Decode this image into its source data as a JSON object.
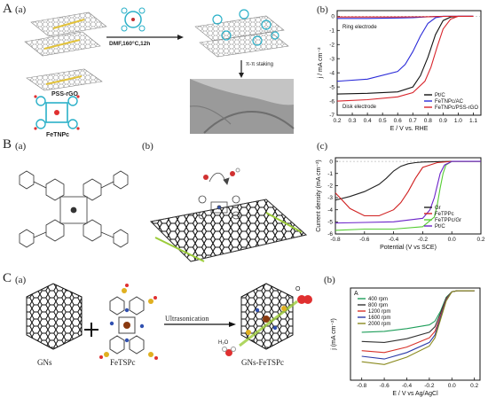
{
  "figure": {
    "panel_A": {
      "label": "A",
      "sub_a": "(a)",
      "sub_b": "(b)",
      "reaction_conditions": "DMF,160°C,12h",
      "stacking_label": "π-π staking",
      "material_1": "PSS-rGO",
      "material_2": "FeTNPc"
    },
    "panel_B": {
      "label": "B",
      "sub_a": "(a)",
      "sub_b": "(b)",
      "sub_c": "(c)"
    },
    "panel_C": {
      "label": "C",
      "sub_a": "(a)",
      "sub_b": "(b)",
      "reagent_1": "GNs",
      "reagent_2": "FeTSPc",
      "process": "Ultrasonication",
      "product": "GNs-FeTSPc",
      "o2": "O",
      "h2o": "H₂O"
    }
  },
  "chart_data": [
    {
      "id": "A-b",
      "type": "line",
      "xlabel": "E / V vs. RHE",
      "ylabel": "j / mA cm⁻²",
      "xlim": [
        0.2,
        1.15
      ],
      "ylim": [
        -7,
        0.4
      ],
      "xticks": [
        "0.2",
        "0.3",
        "0.4",
        "0.5",
        "0.6",
        "0.7",
        "0.8",
        "0.9",
        "1.0",
        "1.1"
      ],
      "yticks": [
        "0",
        "-1",
        "-2",
        "-3",
        "-4",
        "-5",
        "-6",
        "-7"
      ],
      "annotations": [
        "Ring electrode",
        "Disk electrode"
      ],
      "legend_position": "bottom-right",
      "colors": {
        "Pt/C": "#111111",
        "FeTNPc/AC": "#2a2ad8",
        "FeTNPc/PSS-rGO": "#d8232a"
      },
      "series": [
        {
          "name": "Pt/C",
          "x": [
            0.2,
            0.4,
            0.6,
            0.7,
            0.75,
            0.8,
            0.85,
            0.9,
            0.95,
            1.0,
            1.1
          ],
          "y": [
            -5.5,
            -5.45,
            -5.35,
            -5.0,
            -4.2,
            -2.9,
            -1.3,
            -0.3,
            -0.05,
            0,
            0
          ]
        },
        {
          "name": "FeTNPc/AC",
          "x": [
            0.2,
            0.4,
            0.6,
            0.65,
            0.7,
            0.75,
            0.8,
            0.85,
            0.9,
            1.0,
            1.1
          ],
          "y": [
            -4.6,
            -4.45,
            -3.9,
            -3.4,
            -2.5,
            -1.4,
            -0.5,
            -0.1,
            0,
            0,
            0
          ]
        },
        {
          "name": "FeTNPc/PSS-rGO",
          "x": [
            0.2,
            0.4,
            0.6,
            0.7,
            0.78,
            0.82,
            0.86,
            0.9,
            0.95,
            1.0,
            1.1
          ],
          "y": [
            -6.0,
            -5.9,
            -5.7,
            -5.4,
            -4.6,
            -3.6,
            -2.2,
            -0.9,
            -0.2,
            0,
            0
          ]
        },
        {
          "name": "FeTNPc/AC ring",
          "x": [
            0.2,
            0.4,
            0.6,
            0.7,
            0.75,
            0.8,
            0.85,
            0.9,
            1.1
          ],
          "y": [
            -0.15,
            -0.15,
            -0.12,
            -0.1,
            -0.07,
            -0.04,
            -0.02,
            0,
            0
          ]
        },
        {
          "name": "FeTNPc/PSS-rGO ring",
          "x": [
            0.2,
            0.4,
            0.6,
            0.75,
            0.8,
            0.85,
            0.9,
            1.1
          ],
          "y": [
            -0.05,
            -0.05,
            -0.05,
            -0.04,
            -0.03,
            -0.02,
            -0.01,
            0
          ]
        }
      ]
    },
    {
      "id": "B-c",
      "type": "line",
      "xlabel": "Potential (V vs SCE)",
      "ylabel": "Current density (mA cm⁻²)",
      "xlim": [
        -0.8,
        0.2
      ],
      "ylim": [
        -6,
        0.3
      ],
      "xticks": [
        "-0.8",
        "-0.6",
        "-0.4",
        "-0.2",
        "0.0",
        "0.2"
      ],
      "yticks": [
        "0",
        "-1",
        "-2",
        "-3",
        "-4",
        "-5",
        "-6"
      ],
      "legend_position": "bottom-right",
      "colors": {
        "Gr": "#222222",
        "FeTPPc": "#d02020",
        "FeTPPc/Gr": "#55cc33",
        "Pt/C": "#6a22c8"
      },
      "series": [
        {
          "name": "Gr",
          "x": [
            -0.8,
            -0.7,
            -0.6,
            -0.5,
            -0.45,
            -0.4,
            -0.35,
            -0.3,
            -0.25,
            -0.2,
            0,
            0.2
          ],
          "y": [
            -3.2,
            -2.9,
            -2.5,
            -1.9,
            -1.4,
            -0.8,
            -0.4,
            -0.2,
            -0.1,
            -0.05,
            0,
            0
          ]
        },
        {
          "name": "FeTPPc",
          "x": [
            -0.8,
            -0.7,
            -0.6,
            -0.5,
            -0.4,
            -0.35,
            -0.3,
            -0.25,
            -0.2,
            -0.1,
            0,
            0.2
          ],
          "y": [
            -2.6,
            -3.9,
            -4.5,
            -4.5,
            -4.0,
            -3.4,
            -2.5,
            -1.4,
            -0.5,
            -0.1,
            0,
            0
          ]
        },
        {
          "name": "FeTPPc/Gr",
          "x": [
            -0.8,
            -0.6,
            -0.4,
            -0.2,
            -0.12,
            -0.1,
            -0.08,
            -0.06,
            -0.04,
            0,
            0.2
          ],
          "y": [
            -5.7,
            -5.6,
            -5.6,
            -5.4,
            -4.6,
            -3.6,
            -2.2,
            -1.0,
            -0.3,
            0,
            0
          ]
        },
        {
          "name": "Pt/C",
          "x": [
            -0.8,
            -0.6,
            -0.4,
            -0.2,
            -0.15,
            -0.12,
            -0.1,
            -0.08,
            -0.05,
            0,
            0.2
          ],
          "y": [
            -5.1,
            -5.05,
            -5.0,
            -4.7,
            -4.0,
            -3.0,
            -2.0,
            -1.0,
            -0.3,
            0,
            0
          ]
        }
      ]
    },
    {
      "id": "C-b",
      "type": "line",
      "panel_tag": "A",
      "xlabel": "E / V vs Ag/AgCl",
      "ylabel": "j (mA cm⁻²)",
      "xlim": [
        -0.9,
        0.25
      ],
      "ylim": [
        0,
        1
      ],
      "xticks": [
        "-0.8",
        "-0.6",
        "-0.4",
        "-0.2",
        "0.0",
        "0.2"
      ],
      "legend_position": "top-left",
      "colors": {
        "400 rpm": "#1e9e5a",
        "800 rpm": "#333333",
        "1200 rpm": "#d8322a",
        "1600 rpm": "#2a3aa8",
        "2000 rpm": "#8a8a1e"
      },
      "series": [
        {
          "name": "400 rpm",
          "x": [
            -0.8,
            -0.6,
            -0.4,
            -0.2,
            -0.15,
            -0.1,
            -0.05,
            0,
            0.05,
            0.1,
            0.2
          ],
          "y": [
            0.52,
            0.53,
            0.56,
            0.6,
            0.64,
            0.75,
            0.9,
            0.96,
            0.97,
            0.97,
            0.97
          ]
        },
        {
          "name": "800 rpm",
          "x": [
            -0.8,
            -0.6,
            -0.4,
            -0.2,
            -0.15,
            -0.1,
            -0.05,
            0,
            0.05,
            0.1,
            0.2
          ],
          "y": [
            0.42,
            0.41,
            0.45,
            0.52,
            0.58,
            0.73,
            0.89,
            0.96,
            0.97,
            0.97,
            0.97
          ]
        },
        {
          "name": "1200 rpm",
          "x": [
            -0.8,
            -0.6,
            -0.4,
            -0.2,
            -0.15,
            -0.1,
            -0.05,
            0,
            0.05,
            0.1,
            0.2
          ],
          "y": [
            0.32,
            0.3,
            0.36,
            0.46,
            0.53,
            0.7,
            0.88,
            0.96,
            0.97,
            0.97,
            0.97
          ]
        },
        {
          "name": "1600 rpm",
          "x": [
            -0.8,
            -0.6,
            -0.4,
            -0.2,
            -0.15,
            -0.1,
            -0.05,
            0,
            0.05,
            0.1,
            0.2
          ],
          "y": [
            0.26,
            0.23,
            0.3,
            0.41,
            0.49,
            0.68,
            0.87,
            0.96,
            0.97,
            0.97,
            0.97
          ]
        },
        {
          "name": "2000 rpm",
          "x": [
            -0.8,
            -0.6,
            -0.4,
            -0.2,
            -0.15,
            -0.1,
            -0.05,
            0,
            0.05,
            0.1,
            0.2
          ],
          "y": [
            0.2,
            0.17,
            0.25,
            0.37,
            0.46,
            0.66,
            0.86,
            0.96,
            0.97,
            0.97,
            0.97
          ]
        }
      ]
    }
  ]
}
